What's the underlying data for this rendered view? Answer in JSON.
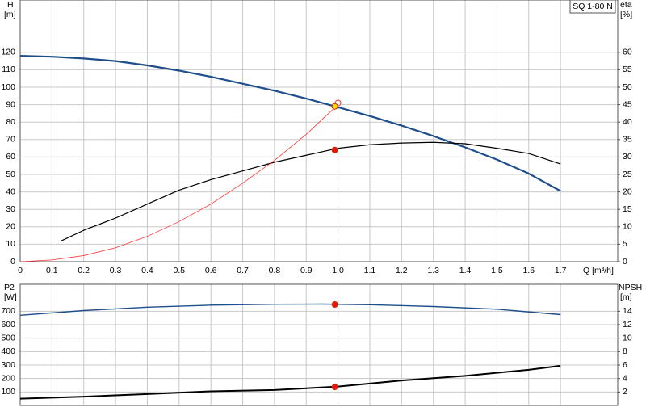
{
  "chart_data": [
    {
      "type": "line",
      "ylabel": "H",
      "yunit": "[m]",
      "y2label": "eta",
      "y2unit": "[%]",
      "xlabel": "Q [m³/h]",
      "legend_box": "SQ 1-80 N",
      "xlim": [
        0,
        1.88
      ],
      "xticks": [
        0,
        0.1,
        0.2,
        0.3,
        0.4,
        0.5,
        0.6,
        0.7,
        0.8,
        0.9,
        {
          "value": 1,
          "label": "1.0"
        },
        1.1,
        1.2,
        1.3,
        1.4,
        1.5,
        1.6,
        1.7
      ],
      "ylim": [
        0,
        150
      ],
      "yticks": [
        0,
        10,
        20,
        30,
        40,
        50,
        60,
        70,
        80,
        90,
        100,
        110,
        120
      ],
      "y2lim": [
        0,
        75
      ],
      "y2ticks": [
        0,
        5,
        10,
        15,
        20,
        25,
        30,
        35,
        40,
        45,
        50,
        55,
        60
      ],
      "grid": true,
      "series": [
        {
          "name": "H",
          "color": "#1f4e8c",
          "width": 2.2,
          "axis": "y",
          "x": [
            0,
            0.1,
            0.2,
            0.3,
            0.4,
            0.5,
            0.6,
            0.7,
            0.8,
            0.9,
            1.0,
            1.1,
            1.2,
            1.3,
            1.4,
            1.5,
            1.6,
            1.7
          ],
          "values": [
            118,
            117.5,
            116.5,
            115,
            112.5,
            109.5,
            106,
            102,
            98,
            93.5,
            88.5,
            83.5,
            78,
            72,
            65.5,
            58.5,
            50.5,
            40.5
          ]
        },
        {
          "name": "eta",
          "color": "#000000",
          "width": 1.2,
          "axis": "y2",
          "x": [
            0.13,
            0.2,
            0.3,
            0.4,
            0.5,
            0.6,
            0.7,
            0.8,
            0.9,
            1.0,
            1.1,
            1.2,
            1.3,
            1.4,
            1.5,
            1.6,
            1.7
          ],
          "values": [
            6,
            9,
            12.5,
            16.5,
            20.5,
            23.5,
            26,
            28.5,
            30.5,
            32.5,
            33.5,
            34,
            34.2,
            33.8,
            32.5,
            31,
            28
          ]
        },
        {
          "color": "#ff3333",
          "width": 0.8,
          "axis": "y",
          "x": [
            0,
            0.1,
            0.2,
            0.3,
            0.4,
            0.5,
            0.6,
            0.7,
            0.8,
            0.9,
            1.0
          ],
          "values": [
            0,
            1,
            3.5,
            8,
            14.5,
            23,
            33,
            45,
            58,
            73,
            90
          ]
        },
        {
          "marker": "open",
          "color": "#ff3333",
          "axis": "y",
          "x": [
            1.0
          ],
          "values": [
            91
          ]
        },
        {
          "marker": "filled",
          "color": "#ffd700",
          "axis": "y",
          "x": [
            0.99
          ],
          "values": [
            89
          ]
        },
        {
          "marker": "filled",
          "color": "#ee1111",
          "axis": "y2",
          "x": [
            0.99
          ],
          "values": [
            32
          ]
        }
      ]
    },
    {
      "type": "line",
      "ylabel": "P2",
      "yunit": "[W]",
      "y2label": "NPSH",
      "y2unit": "[m]",
      "xlim": [
        0,
        1.88
      ],
      "xticks": [
        0,
        0.1,
        0.2,
        0.3,
        0.4,
        0.5,
        0.6,
        0.7,
        0.8,
        0.9,
        1.0,
        1.1,
        1.2,
        1.3,
        1.4,
        1.5,
        1.6,
        1.7
      ],
      "ylim": [
        0,
        900
      ],
      "yticks": [
        100,
        200,
        300,
        400,
        500,
        600,
        700
      ],
      "y2lim": [
        0,
        18
      ],
      "y2ticks": [
        2,
        4,
        6,
        8,
        10,
        12,
        14
      ],
      "grid": true,
      "series": [
        {
          "name": "P2",
          "color": "#1f4e8c",
          "width": 1.4,
          "axis": "y",
          "x": [
            0,
            0.2,
            0.4,
            0.6,
            0.8,
            0.95,
            1.1,
            1.3,
            1.5,
            1.7
          ],
          "values": [
            670,
            705,
            730,
            745,
            752,
            753,
            748,
            735,
            715,
            675
          ]
        },
        {
          "name": "NPSH",
          "color": "#000000",
          "width": 2,
          "axis": "y2",
          "x": [
            0,
            0.2,
            0.4,
            0.6,
            0.8,
            1.0,
            1.2,
            1.4,
            1.6,
            1.7
          ],
          "values": [
            1,
            1.3,
            1.7,
            2.1,
            2.3,
            2.8,
            3.7,
            4.4,
            5.3,
            5.9
          ]
        },
        {
          "marker": "filled",
          "color": "#ee1111",
          "axis": "y",
          "x": [
            0.99
          ],
          "values": [
            750
          ]
        },
        {
          "marker": "filled",
          "color": "#ee1111",
          "axis": "y2",
          "x": [
            0.99
          ],
          "values": [
            2.75
          ]
        }
      ]
    }
  ]
}
